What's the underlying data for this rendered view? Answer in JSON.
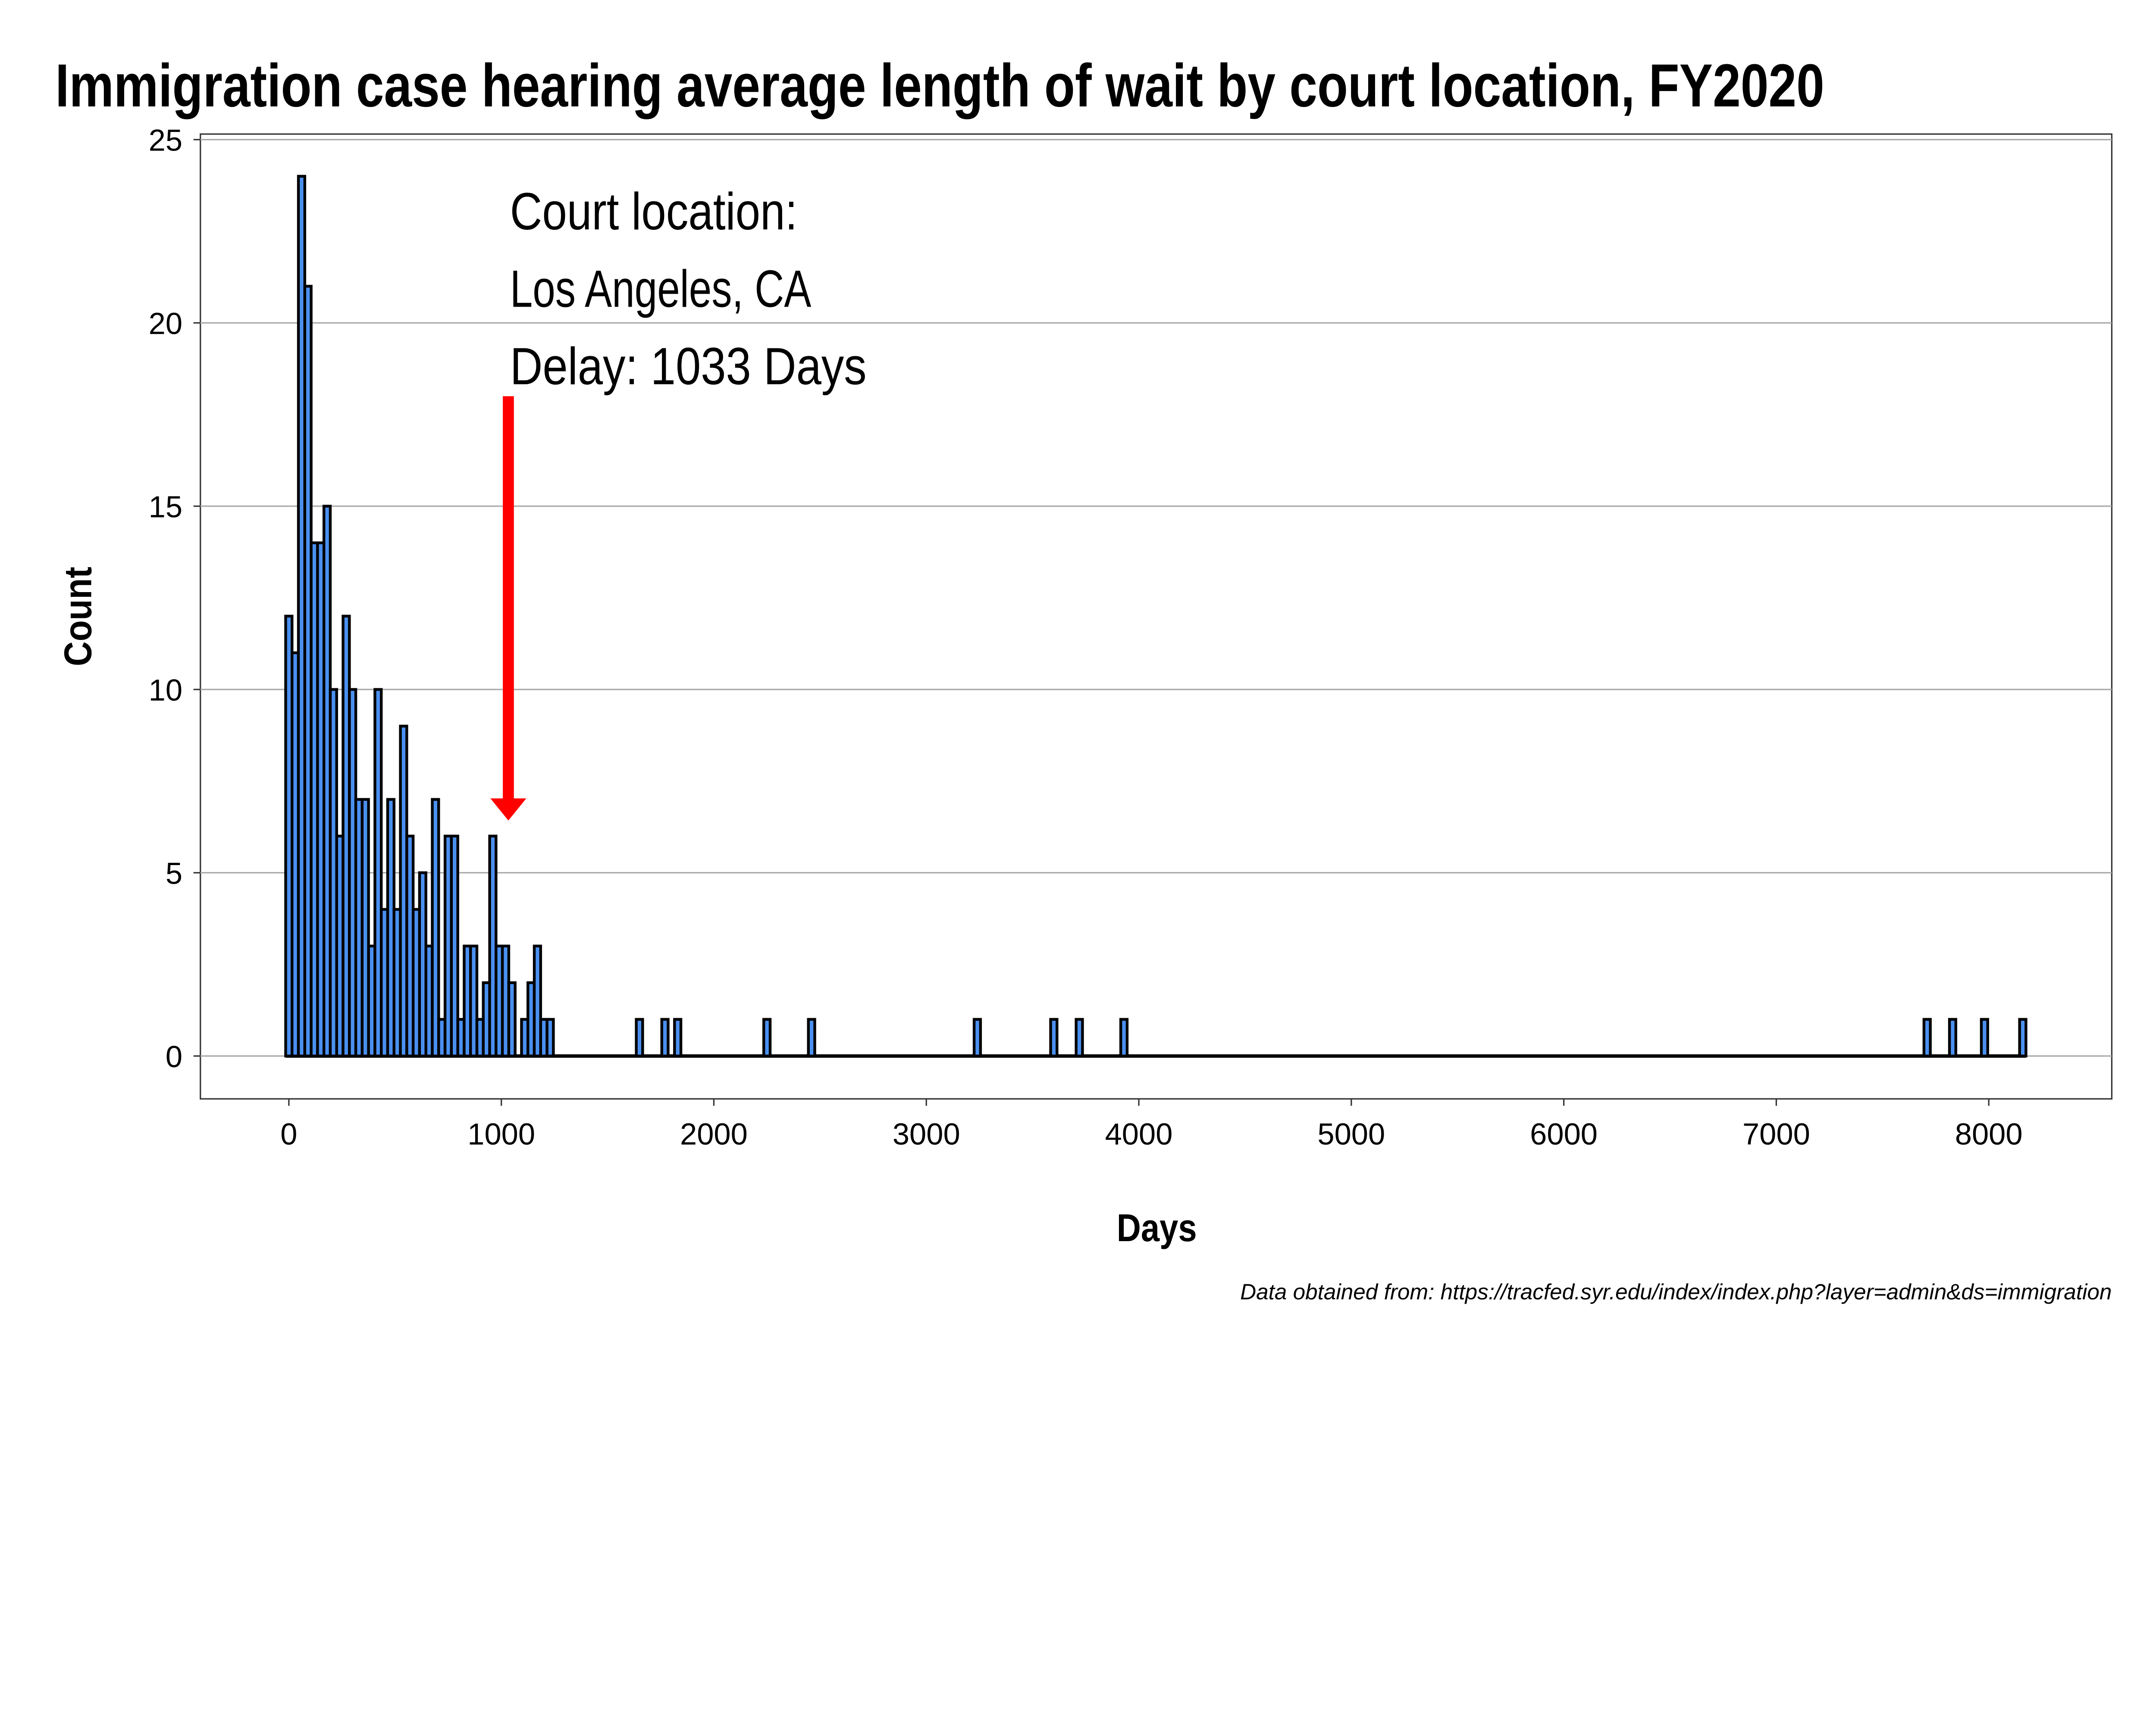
{
  "chart_data": {
    "type": "bar",
    "subtype": "histogram",
    "title": "Immigration case hearing average length of wait by court location, FY2020",
    "xlabel": "Days",
    "ylabel": "Count",
    "xlim": [
      -420,
      8600
    ],
    "ylim": [
      -1.2,
      25.2
    ],
    "xticks": [
      0,
      1000,
      2000,
      3000,
      4000,
      5000,
      6000,
      7000,
      8000
    ],
    "yticks": [
      0,
      5,
      10,
      15,
      20,
      25
    ],
    "grid": "horizontal",
    "bin_width": 30,
    "bins": {
      "x": [
        0,
        30,
        60,
        90,
        120,
        150,
        180,
        210,
        240,
        270,
        300,
        330,
        360,
        390,
        420,
        450,
        480,
        510,
        540,
        570,
        600,
        630,
        660,
        690,
        720,
        750,
        780,
        810,
        840,
        870,
        900,
        930,
        960,
        990,
        1020,
        1050,
        1080,
        1110,
        1140,
        1170,
        1200,
        1230,
        1650,
        1770,
        1830,
        2250,
        2460,
        3240,
        3600,
        3720,
        3930,
        7710,
        7830,
        7980,
        8160
      ],
      "counts": [
        12,
        11,
        24,
        21,
        14,
        14,
        15,
        10,
        6,
        12,
        10,
        7,
        7,
        3,
        10,
        4,
        7,
        4,
        9,
        6,
        4,
        5,
        3,
        7,
        1,
        6,
        6,
        1,
        3,
        3,
        1,
        2,
        6,
        3,
        3,
        2,
        0,
        1,
        2,
        3,
        1,
        1,
        1,
        1,
        1,
        1,
        1,
        1,
        1,
        1,
        1,
        1,
        1,
        1,
        1
      ]
    },
    "colors": {
      "bar_fill": "#4a90f0",
      "bar_edge": "#000000",
      "arrow": "#ff0000"
    },
    "annotation": {
      "line1": "Court location:",
      "line2": "Los Angeles, CA",
      "line3": "Delay:  1033  Days",
      "arrow_x": 1033,
      "arrow_from_y": 18,
      "arrow_to_y": 6.5
    },
    "caption": "Data obtained from: https://tracfed.syr.edu/index/index.php?layer=admin&ds=immigration"
  }
}
